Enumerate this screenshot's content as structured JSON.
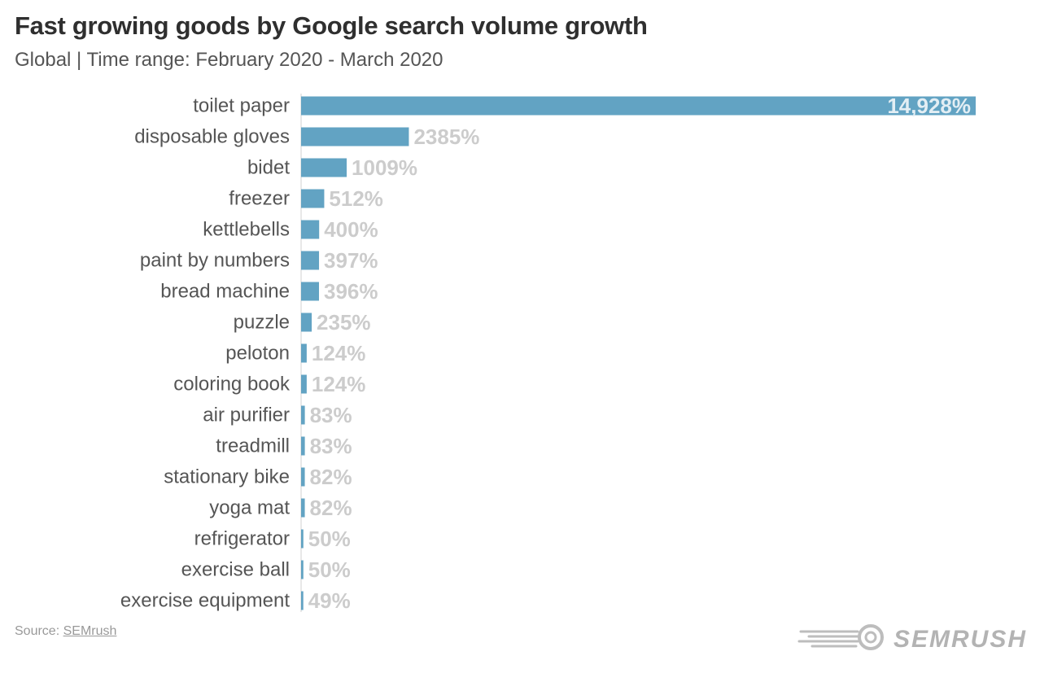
{
  "header": {
    "title": "Fast growing goods by Google search volume growth",
    "subtitle": "Global | Time range: February 2020 - March 2020"
  },
  "footer": {
    "source_prefix": "Source: ",
    "source_link": "SEMrush",
    "brand": "SEMRUSH"
  },
  "colors": {
    "bar": "#62a3c3",
    "value_label": "#cccccc",
    "inside_label": "#e3eef4",
    "category_label": "#555555"
  },
  "chart_data": {
    "type": "bar",
    "orientation": "horizontal",
    "title": "Fast growing goods by Google search volume growth",
    "subtitle": "Global | Time range: February 2020 - March 2020",
    "categories": [
      "toilet paper",
      "disposable gloves",
      "bidet",
      "freezer",
      "kettlebells",
      "paint by numbers",
      "bread machine",
      "puzzle",
      "peloton",
      "coloring book",
      "air purifier",
      "treadmill",
      "stationary bike",
      "yoga mat",
      "refrigerator",
      "exercise ball",
      "exercise equipment"
    ],
    "values": [
      14928,
      2385,
      1009,
      512,
      400,
      397,
      396,
      235,
      124,
      124,
      83,
      83,
      82,
      82,
      50,
      50,
      49
    ],
    "labels": [
      "14,928%",
      "2385%",
      "1009%",
      "512%",
      "400%",
      "397%",
      "396%",
      "235%",
      "124%",
      "124%",
      "83%",
      "83%",
      "82%",
      "82%",
      "50%",
      "50%",
      "49%"
    ],
    "xlim": [
      0,
      14928
    ],
    "unit": "%",
    "grid": false,
    "legend": "none"
  }
}
